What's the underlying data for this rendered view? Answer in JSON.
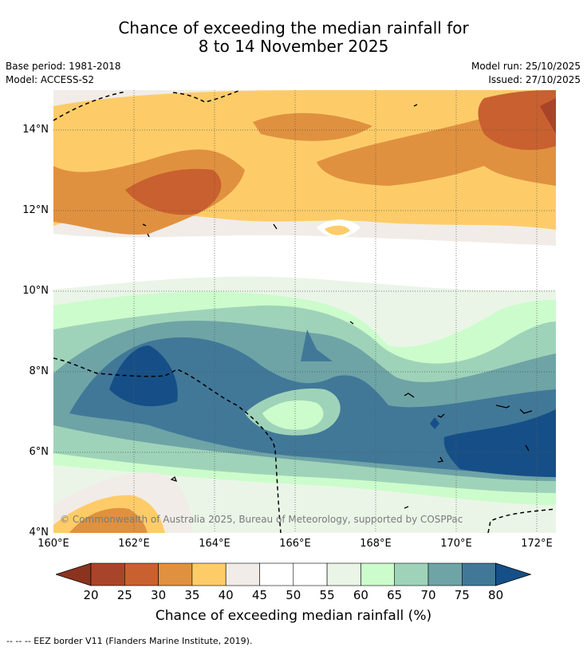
{
  "header": {
    "title_line1": "Chance of exceeding the median rainfall for",
    "title_line2": "8 to 14 November 2025",
    "base_period": "Base period: 1981-2018",
    "model": "Model: ACCESS-S2",
    "model_run": "Model run: 25/10/2025",
    "issued": "Issued: 27/10/2025"
  },
  "map": {
    "copyright": "© Commonwealth of Australia 2025, Bureau of Meteorology, supported by COSPPac",
    "lat_labels": [
      "14°N",
      "12°N",
      "10°N",
      "8°N",
      "6°N",
      "4°N"
    ],
    "lon_labels": [
      "160°E",
      "162°E",
      "164°E",
      "166°E",
      "168°E",
      "170°E",
      "172°E"
    ]
  },
  "legend": {
    "tick_labels": [
      "20",
      "25",
      "30",
      "35",
      "40",
      "45",
      "50",
      "55",
      "60",
      "65",
      "70",
      "75",
      "80"
    ],
    "colors": [
      "#a8442a",
      "#c9602f",
      "#e0913f",
      "#fdcc69",
      "#f1ece7",
      "#ffffff",
      "#ffffff",
      "#eaf5e8",
      "#ccfccc",
      "#9fd3b9",
      "#6ea4a6",
      "#417898",
      "#164f87"
    ],
    "low_extend_color": "#8c3320",
    "high_extend_color": "#164f87",
    "title": "Chance of exceeding median rainfall (%)"
  },
  "footer": {
    "eez_note": "--  --  -- EEZ border V11 (Flanders Marine Institute, 2019)."
  }
}
